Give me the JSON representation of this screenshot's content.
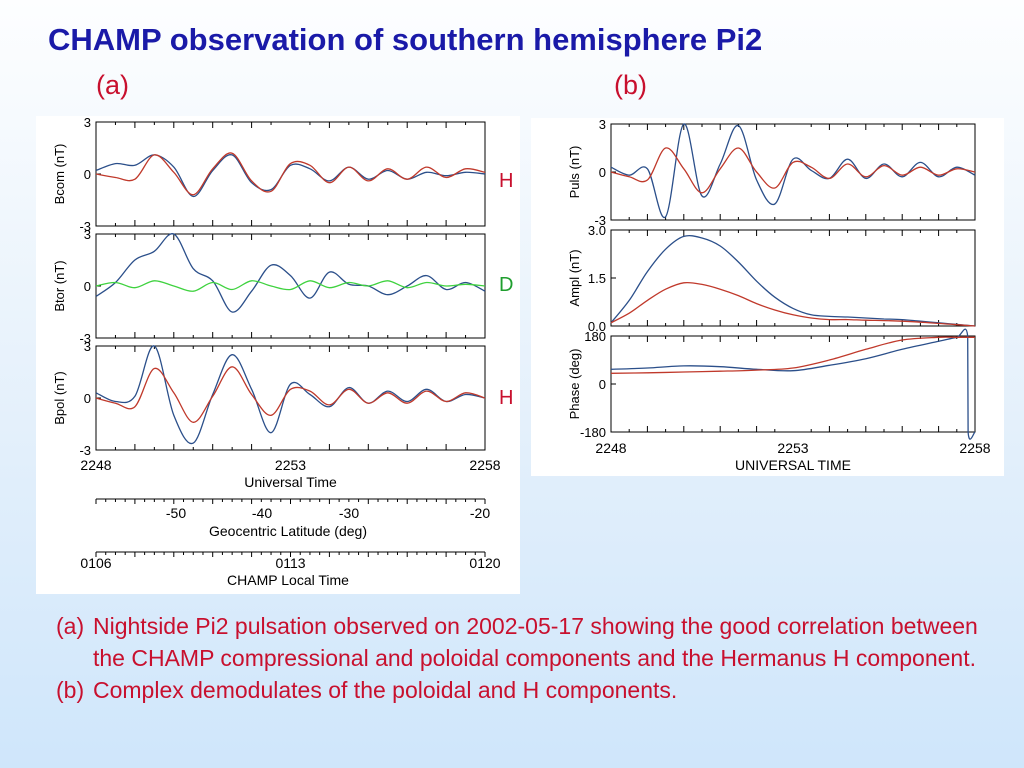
{
  "slide": {
    "title": "CHAMP observation of southern hemisphere Pi2",
    "panel_a_label": "(a)",
    "panel_b_label": "(b)",
    "component_labels": [
      {
        "text": "H",
        "color": "#c8102e"
      },
      {
        "text": "D",
        "color": "#1f9e2e"
      },
      {
        "text": "H",
        "color": "#c8102e"
      }
    ],
    "captions": [
      {
        "tag": "(a)",
        "text": "Nightside Pi2 pulsation observed on 2002-05-17 showing the good correlation between the CHAMP compressional and poloidal components and the Hermanus H component."
      },
      {
        "tag": "(b)",
        "text": "Complex demodulates of the poloidal and H components."
      }
    ]
  },
  "colors": {
    "title": "#1a1aa8",
    "labels": "#c8102e",
    "champ_trace": "#2b4f8a",
    "hermanus_trace": "#c0392b",
    "d_trace": "#3fd23f"
  },
  "chart_data": [
    {
      "type": "line",
      "xlabel": "Universal Time",
      "xticks": [
        "2248",
        "2253",
        "2258"
      ],
      "xlim": [
        0,
        10
      ],
      "extra_axes": [
        {
          "label": "Geocentric Latitude (deg)",
          "ticks": [
            "-50",
            "-40",
            "-30",
            "-20"
          ]
        },
        {
          "label": "CHAMP Local Time",
          "ticks": [
            "0106",
            "0113",
            "0120"
          ]
        }
      ],
      "panels": [
        {
          "ylabel": "Bcom (nT)",
          "yticks": [
            "3",
            "0",
            "-3"
          ],
          "ylim": [
            -3,
            3
          ],
          "series": [
            {
              "x": [
                0,
                0.5,
                1.0,
                1.5,
                2.0,
                2.5,
                3.0,
                3.5,
                4.0,
                4.5,
                5.0,
                5.5,
                6.0,
                6.5,
                7.0,
                7.5,
                8.0,
                8.5,
                9.0,
                9.5,
                10.0
              ],
              "y": [
                0.2,
                0.6,
                0.5,
                1.1,
                0.4,
                -1.3,
                0.2,
                1.1,
                -0.5,
                -0.9,
                0.5,
                0.3,
                -0.4,
                0.4,
                -0.3,
                0.2,
                -0.3,
                0.1,
                -0.1,
                0.1,
                0.0
              ]
            },
            {
              "x": [
                0,
                0.5,
                1.0,
                1.5,
                2.0,
                2.5,
                3.0,
                3.5,
                4.0,
                4.5,
                5.0,
                5.5,
                6.0,
                6.5,
                7.0,
                7.5,
                8.0,
                8.5,
                9.0,
                9.5,
                10.0
              ],
              "y": [
                0.0,
                -0.2,
                -0.3,
                1.1,
                0.1,
                -1.2,
                0.3,
                1.2,
                -0.4,
                -1.0,
                0.6,
                0.5,
                -0.5,
                0.4,
                -0.4,
                0.3,
                -0.3,
                0.4,
                -0.2,
                0.3,
                0.1
              ]
            }
          ]
        },
        {
          "ylabel": "Btor (nT)",
          "yticks": [
            "3",
            "0",
            "-3"
          ],
          "ylim": [
            -3,
            3
          ],
          "series": [
            {
              "x": [
                0,
                0.5,
                1.0,
                1.5,
                2.0,
                2.5,
                3.0,
                3.5,
                4.0,
                4.5,
                5.0,
                5.5,
                6.0,
                6.5,
                7.0,
                7.5,
                8.0,
                8.5,
                9.0,
                9.5,
                10.0
              ],
              "y": [
                -0.6,
                0.2,
                1.5,
                2.0,
                3.0,
                1.0,
                0.3,
                -1.5,
                -0.3,
                1.2,
                0.6,
                -0.7,
                0.8,
                0.1,
                0.0,
                -0.5,
                0.0,
                0.6,
                -0.2,
                0.2,
                -0.3
              ]
            },
            {
              "x": [
                0,
                0.5,
                1.0,
                1.5,
                2.0,
                2.5,
                3.0,
                3.5,
                4.0,
                4.5,
                5.0,
                5.5,
                6.0,
                6.5,
                7.0,
                7.5,
                8.0,
                8.5,
                9.0,
                9.5,
                10.0
              ],
              "y": [
                0.0,
                0.2,
                -0.1,
                0.3,
                0.0,
                -0.3,
                0.2,
                -0.2,
                0.3,
                0.0,
                -0.2,
                0.3,
                -0.1,
                0.2,
                0.0,
                0.3,
                -0.1,
                0.2,
                0.0,
                0.1,
                0.0
              ]
            }
          ]
        },
        {
          "ylabel": "Bpol (nT)",
          "yticks": [
            "3",
            "0",
            "-3"
          ],
          "ylim": [
            -3,
            3
          ],
          "series": [
            {
              "x": [
                0,
                0.5,
                1.0,
                1.5,
                2.0,
                2.5,
                3.0,
                3.5,
                4.0,
                4.5,
                5.0,
                5.5,
                6.0,
                6.5,
                7.0,
                7.5,
                8.0,
                8.5,
                9.0,
                9.5,
                10.0
              ],
              "y": [
                0.3,
                -0.2,
                0.1,
                3.0,
                -1.0,
                -2.6,
                0.2,
                2.5,
                0.5,
                -2.0,
                0.8,
                0.2,
                -0.5,
                0.6,
                -0.3,
                0.4,
                -0.2,
                0.5,
                -0.2,
                0.2,
                0.0
              ]
            },
            {
              "x": [
                0,
                0.5,
                1.0,
                1.5,
                2.0,
                2.5,
                3.0,
                3.5,
                4.0,
                4.5,
                5.0,
                5.5,
                6.0,
                6.5,
                7.0,
                7.5,
                8.0,
                8.5,
                9.0,
                9.5,
                10.0
              ],
              "y": [
                0.0,
                -0.3,
                -0.5,
                1.7,
                0.3,
                -1.4,
                0.1,
                1.8,
                0.2,
                -1.0,
                0.5,
                0.4,
                -0.4,
                0.5,
                -0.3,
                0.3,
                -0.3,
                0.4,
                -0.2,
                0.3,
                0.0
              ]
            }
          ]
        }
      ]
    },
    {
      "type": "line",
      "xlabel": "UNIVERSAL TIME",
      "xticks": [
        "2248",
        "2253",
        "2258"
      ],
      "xlim": [
        0,
        10
      ],
      "panels": [
        {
          "ylabel": "Puls (nT)",
          "yticks": [
            "3",
            "0",
            "-3"
          ],
          "ylim": [
            -3,
            3
          ],
          "series": [
            {
              "x": [
                0,
                0.5,
                1.0,
                1.5,
                2.0,
                2.5,
                3.0,
                3.5,
                4.0,
                4.5,
                5.0,
                5.5,
                6.0,
                6.5,
                7.0,
                7.5,
                8.0,
                8.5,
                9.0,
                9.5,
                10.0
              ],
              "y": [
                0.3,
                -0.2,
                0.2,
                -2.8,
                3.0,
                -1.5,
                0.5,
                2.9,
                -0.5,
                -2.0,
                0.8,
                0.1,
                -0.4,
                0.8,
                -0.4,
                0.5,
                -0.3,
                0.6,
                -0.3,
                0.3,
                -0.2
              ]
            },
            {
              "x": [
                0,
                0.5,
                1.0,
                1.5,
                2.0,
                2.5,
                3.0,
                3.5,
                4.0,
                4.5,
                5.0,
                5.5,
                6.0,
                6.5,
                7.0,
                7.5,
                8.0,
                8.5,
                9.0,
                9.5,
                10.0
              ],
              "y": [
                0.0,
                -0.3,
                -0.5,
                1.5,
                0.2,
                -1.3,
                0.2,
                1.5,
                0.0,
                -1.0,
                0.6,
                0.3,
                -0.4,
                0.5,
                -0.3,
                0.4,
                -0.2,
                0.3,
                -0.2,
                0.2,
                0.0
              ]
            }
          ]
        },
        {
          "ylabel": "Ampl (nT)",
          "yticks": [
            "3.0",
            "1.5",
            "0.0"
          ],
          "ylim": [
            0,
            3
          ],
          "series": [
            {
              "x": [
                0,
                0.5,
                1.0,
                1.5,
                2.0,
                2.5,
                3.0,
                3.5,
                4.0,
                4.5,
                5.0,
                5.5,
                6.0,
                6.5,
                7.0,
                7.5,
                8.0,
                8.5,
                9.0,
                9.5,
                10.0
              ],
              "y": [
                0.1,
                0.8,
                1.7,
                2.4,
                2.8,
                2.75,
                2.5,
                2.0,
                1.4,
                0.9,
                0.55,
                0.35,
                0.3,
                0.28,
                0.25,
                0.22,
                0.2,
                0.15,
                0.1,
                0.05,
                0.0
              ]
            },
            {
              "x": [
                0,
                0.5,
                1.0,
                1.5,
                2.0,
                2.5,
                3.0,
                3.5,
                4.0,
                4.5,
                5.0,
                5.5,
                6.0,
                6.5,
                7.0,
                7.5,
                8.0,
                8.5,
                9.0,
                9.5,
                10.0
              ],
              "y": [
                0.1,
                0.4,
                0.8,
                1.15,
                1.35,
                1.3,
                1.15,
                0.95,
                0.7,
                0.5,
                0.35,
                0.25,
                0.2,
                0.2,
                0.18,
                0.17,
                0.15,
                0.12,
                0.08,
                0.04,
                0.0
              ]
            }
          ]
        },
        {
          "ylabel": "Phase (deg)",
          "yticks": [
            "180",
            "0",
            "-180"
          ],
          "ylim": [
            -180,
            180
          ],
          "series": [
            {
              "x": [
                0,
                1,
                2,
                3,
                4,
                5,
                6,
                7,
                8,
                9,
                9.5,
                9.8,
                9.81,
                10.0
              ],
              "y": [
                55,
                60,
                68,
                65,
                55,
                50,
                70,
                95,
                130,
                160,
                175,
                180,
                -180,
                -180
              ]
            },
            {
              "x": [
                0,
                1,
                2,
                3,
                4,
                5,
                6,
                7,
                8,
                9,
                9.5,
                10.0
              ],
              "y": [
                40,
                42,
                45,
                48,
                52,
                60,
                90,
                130,
                165,
                175,
                175,
                175
              ]
            }
          ]
        }
      ]
    }
  ]
}
